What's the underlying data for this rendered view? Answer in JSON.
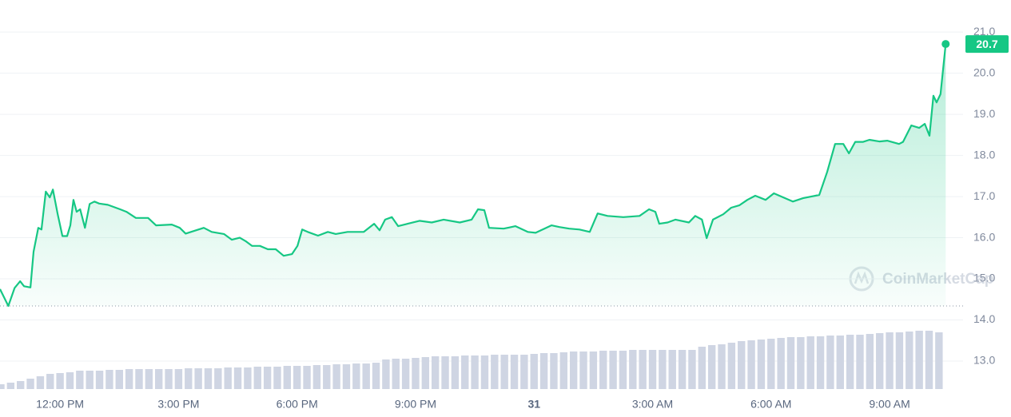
{
  "chart_data": {
    "type": "line",
    "color": "#16c784",
    "x": [
      -1.52,
      -1.31,
      -1.15,
      -1.01,
      -0.91,
      -0.75,
      -0.67,
      -0.55,
      -0.47,
      -0.36,
      -0.26,
      -0.18,
      -0.06,
      0.06,
      0.18,
      0.26,
      0.34,
      0.42,
      0.51,
      0.63,
      0.75,
      0.87,
      0.99,
      1.21,
      1.52,
      1.68,
      1.92,
      2.23,
      2.43,
      2.83,
      3.03,
      3.18,
      3.44,
      3.64,
      3.84,
      4.15,
      4.35,
      4.55,
      4.71,
      4.86,
      5.06,
      5.26,
      5.46,
      5.66,
      5.87,
      6.01,
      6.13,
      6.27,
      6.53,
      6.78,
      6.98,
      7.28,
      7.69,
      7.95,
      8.09,
      8.23,
      8.4,
      8.56,
      8.8,
      9.1,
      9.41,
      9.71,
      10.12,
      10.42,
      10.58,
      10.74,
      10.86,
      11.23,
      11.53,
      11.84,
      12.04,
      12.44,
      12.64,
      12.89,
      13.15,
      13.41,
      13.61,
      13.86,
      14.26,
      14.67,
      14.91,
      15.07,
      15.17,
      15.38,
      15.58,
      15.92,
      16.08,
      16.25,
      16.37,
      16.53,
      16.79,
      16.99,
      17.2,
      17.4,
      17.6,
      17.86,
      18.07,
      18.31,
      18.55,
      18.81,
      19.22,
      19.42,
      19.62,
      19.83,
      19.97,
      20.13,
      20.33,
      20.49,
      20.74,
      20.94,
      21.24,
      21.34,
      21.55,
      21.75,
      21.89,
      22.01,
      22.11,
      22.19,
      22.29,
      22.42
    ],
    "values": [
      14.75,
      14.34,
      14.78,
      14.94,
      14.82,
      14.79,
      15.66,
      16.24,
      16.2,
      17.12,
      16.98,
      17.17,
      16.57,
      16.04,
      16.04,
      16.3,
      16.92,
      16.63,
      16.69,
      16.24,
      16.82,
      16.88,
      16.83,
      16.8,
      16.69,
      16.63,
      16.48,
      16.48,
      16.3,
      16.32,
      16.24,
      16.1,
      16.18,
      16.24,
      16.14,
      16.09,
      15.95,
      16.0,
      15.91,
      15.8,
      15.8,
      15.72,
      15.72,
      15.56,
      15.6,
      15.8,
      16.2,
      16.14,
      16.05,
      16.14,
      16.09,
      16.14,
      16.14,
      16.34,
      16.18,
      16.44,
      16.5,
      16.28,
      16.34,
      16.41,
      16.37,
      16.44,
      16.37,
      16.44,
      16.69,
      16.67,
      16.24,
      16.22,
      16.28,
      16.14,
      16.12,
      16.3,
      16.26,
      16.22,
      16.2,
      16.14,
      16.59,
      16.53,
      16.5,
      16.53,
      16.69,
      16.63,
      16.34,
      16.37,
      16.44,
      16.37,
      16.53,
      16.44,
      15.99,
      16.44,
      16.57,
      16.73,
      16.79,
      16.92,
      17.02,
      16.92,
      17.08,
      16.98,
      16.88,
      16.96,
      17.04,
      17.6,
      18.28,
      18.28,
      18.05,
      18.33,
      18.33,
      18.38,
      18.34,
      18.36,
      18.28,
      18.33,
      18.73,
      18.67,
      18.77,
      18.48,
      19.45,
      19.29,
      19.49,
      20.71
    ],
    "current": {
      "value": 20.71,
      "label": "20.7"
    },
    "baseline": 14.34,
    "xlim": [
      -1.52,
      22.86
    ],
    "xticks": [
      {
        "value": 0,
        "label": "12:00 PM"
      },
      {
        "value": 3,
        "label": "3:00 PM"
      },
      {
        "value": 6,
        "label": "6:00 PM"
      },
      {
        "value": 9,
        "label": "9:00 PM"
      },
      {
        "value": 12,
        "label": "31"
      },
      {
        "value": 15,
        "label": "3:00 AM"
      },
      {
        "value": 18,
        "label": "6:00 AM"
      },
      {
        "value": 21,
        "label": "9:00 AM"
      }
    ],
    "ylim": [
      12.32,
      21.78
    ],
    "yticks": [
      {
        "value": 13,
        "label": "13.0"
      },
      {
        "value": 14,
        "label": "14.0"
      },
      {
        "value": 15,
        "label": "15.0"
      },
      {
        "value": 16,
        "label": "16.0"
      },
      {
        "value": 17,
        "label": "17.0"
      },
      {
        "value": 18,
        "label": "18.0"
      },
      {
        "value": 19,
        "label": "19.0"
      },
      {
        "value": 20,
        "label": "20.0"
      },
      {
        "value": 21,
        "label": "21.0"
      }
    ],
    "grid": true,
    "watermark": "CoinMarketCap",
    "volume": {
      "type": "bar",
      "color": "#cfd5e3",
      "ylim": [
        0,
        100
      ],
      "x": [
        -1.5,
        -1.25,
        -1,
        -0.75,
        -0.5,
        -0.25,
        0,
        0.25,
        0.5,
        0.75,
        1,
        1.25,
        1.5,
        1.75,
        2,
        2.25,
        2.5,
        2.75,
        3,
        3.25,
        3.5,
        3.75,
        4,
        4.25,
        4.5,
        4.75,
        5,
        5.25,
        5.5,
        5.75,
        6,
        6.25,
        6.5,
        6.75,
        7,
        7.25,
        7.5,
        7.75,
        8,
        8.25,
        8.5,
        8.75,
        9,
        9.25,
        9.5,
        9.75,
        10,
        10.25,
        10.5,
        10.75,
        11,
        11.25,
        11.5,
        11.75,
        12,
        12.25,
        12.5,
        12.75,
        13,
        13.25,
        13.5,
        13.75,
        14,
        14.25,
        14.5,
        14.75,
        15,
        15.25,
        15.5,
        15.75,
        16,
        16.25,
        16.5,
        16.75,
        17,
        17.25,
        17.5,
        17.75,
        18,
        18.25,
        18.5,
        18.75,
        19,
        19.25,
        19.5,
        19.75,
        20,
        20.25,
        20.5,
        20.75,
        21,
        21.25,
        21.5,
        21.75,
        22,
        22.25
      ],
      "values": [
        6,
        8,
        10,
        13,
        16,
        19,
        20,
        21,
        23,
        23,
        23,
        24,
        24,
        25,
        25,
        25,
        25,
        25,
        25,
        26,
        26,
        26,
        26,
        27,
        27,
        27,
        28,
        28,
        28,
        29,
        29,
        29,
        30,
        30,
        31,
        31,
        32,
        32,
        33,
        37,
        38,
        38,
        39,
        40,
        41,
        41,
        41,
        42,
        42,
        42,
        43,
        43,
        43,
        43,
        44,
        45,
        45,
        46,
        47,
        47,
        47,
        48,
        48,
        48,
        49,
        49,
        49,
        49,
        49,
        49,
        49,
        53,
        55,
        56,
        58,
        60,
        61,
        62,
        63,
        64,
        65,
        65,
        66,
        66,
        67,
        67,
        68,
        68,
        69,
        70,
        71,
        71,
        72,
        73,
        73,
        71
      ]
    }
  }
}
